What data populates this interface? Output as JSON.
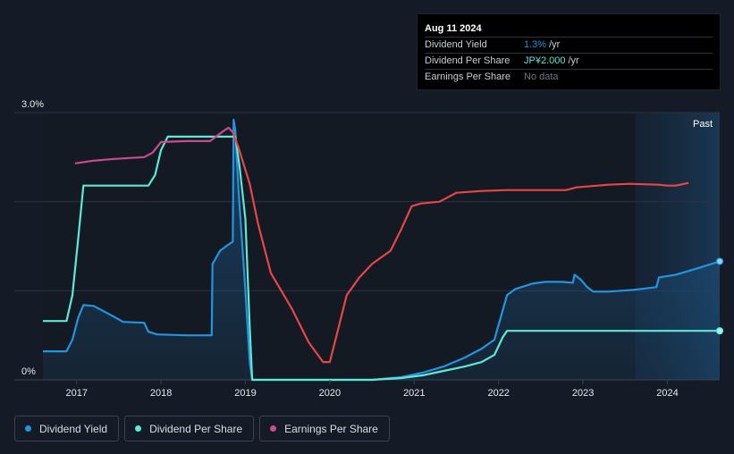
{
  "tooltip": {
    "date": "Aug 11 2024",
    "rows": [
      {
        "label": "Dividend Yield",
        "value": "1.3%",
        "unit": "/yr"
      },
      {
        "label": "Dividend Per Share",
        "value": "JP¥2.000",
        "unit": "/yr"
      },
      {
        "label": "Earnings Per Share",
        "value": "No data",
        "unit": ""
      }
    ]
  },
  "legend": [
    {
      "label": "Dividend Yield",
      "color": "#2394df"
    },
    {
      "label": "Dividend Per Share",
      "color": "#5ee8d5"
    },
    {
      "label": "Earnings Per Share",
      "color": "#cc4a91"
    }
  ],
  "colors": {
    "yield": "#2394df",
    "dps": "#5ee8d5",
    "eps_up": "#cc4a91",
    "eps_down": "#e84545",
    "background": "#151b26",
    "past_band": "#16324a"
  },
  "chart_data": {
    "type": "line",
    "title": "",
    "xlabel": "",
    "ylabel": "",
    "x_range": [
      2016.6,
      2024.62
    ],
    "ylim": [
      0,
      3.0
    ],
    "y_tick_labels": [
      {
        "value": 3.0,
        "label": "3.0%"
      },
      {
        "value": 0,
        "label": "0%"
      }
    ],
    "gridlines": [
      1.0,
      2.0,
      3.0
    ],
    "x_ticks": [
      2017,
      2018,
      2019,
      2020,
      2021,
      2022,
      2023,
      2024
    ],
    "x_tick_labels": [
      "2017",
      "2018",
      "2019",
      "2020",
      "2021",
      "2022",
      "2023",
      "2024"
    ],
    "past_band": {
      "start": 2023.62,
      "end": 2024.62,
      "label": "Past"
    },
    "series": [
      {
        "name": "Dividend Yield",
        "key": "yield",
        "area": true,
        "end_marker": true,
        "points": [
          [
            2016.6,
            0.32
          ],
          [
            2016.88,
            0.32
          ],
          [
            2016.95,
            0.45
          ],
          [
            2017.02,
            0.7
          ],
          [
            2017.08,
            0.84
          ],
          [
            2017.2,
            0.83
          ],
          [
            2017.4,
            0.73
          ],
          [
            2017.55,
            0.65
          ],
          [
            2017.8,
            0.64
          ],
          [
            2017.85,
            0.54
          ],
          [
            2017.95,
            0.51
          ],
          [
            2018.3,
            0.5
          ],
          [
            2018.6,
            0.5
          ],
          [
            2018.61,
            1.3
          ],
          [
            2018.7,
            1.45
          ],
          [
            2018.8,
            1.52
          ],
          [
            2018.85,
            1.55
          ],
          [
            2018.86,
            2.92
          ],
          [
            2018.88,
            2.8
          ],
          [
            2018.92,
            2.1
          ],
          [
            2019.0,
            1.0
          ],
          [
            2019.05,
            0.2
          ],
          [
            2019.08,
            0.0
          ],
          [
            2020.5,
            0.0
          ],
          [
            2020.85,
            0.03
          ],
          [
            2021.1,
            0.08
          ],
          [
            2021.35,
            0.15
          ],
          [
            2021.6,
            0.25
          ],
          [
            2021.8,
            0.35
          ],
          [
            2021.95,
            0.45
          ],
          [
            2022.1,
            0.95
          ],
          [
            2022.2,
            1.02
          ],
          [
            2022.4,
            1.08
          ],
          [
            2022.55,
            1.1
          ],
          [
            2022.75,
            1.1
          ],
          [
            2022.88,
            1.09
          ],
          [
            2022.9,
            1.18
          ],
          [
            2022.98,
            1.12
          ],
          [
            2023.05,
            1.04
          ],
          [
            2023.12,
            0.99
          ],
          [
            2023.3,
            0.99
          ],
          [
            2023.6,
            1.01
          ],
          [
            2023.87,
            1.04
          ],
          [
            2023.9,
            1.15
          ],
          [
            2024.1,
            1.18
          ],
          [
            2024.35,
            1.25
          ],
          [
            2024.62,
            1.33
          ]
        ]
      },
      {
        "name": "Dividend Per Share",
        "key": "dps",
        "area": false,
        "end_marker": true,
        "points": [
          [
            2016.6,
            0.66
          ],
          [
            2016.88,
            0.66
          ],
          [
            2016.95,
            0.95
          ],
          [
            2017.02,
            1.6
          ],
          [
            2017.08,
            2.18
          ],
          [
            2017.85,
            2.18
          ],
          [
            2017.93,
            2.3
          ],
          [
            2018.0,
            2.58
          ],
          [
            2018.08,
            2.73
          ],
          [
            2018.55,
            2.73
          ],
          [
            2018.88,
            2.73
          ],
          [
            2018.93,
            2.4
          ],
          [
            2019.0,
            1.8
          ],
          [
            2019.05,
            0.6
          ],
          [
            2019.08,
            0.0
          ],
          [
            2020.5,
            0.0
          ],
          [
            2020.85,
            0.02
          ],
          [
            2021.1,
            0.05
          ],
          [
            2021.35,
            0.1
          ],
          [
            2021.6,
            0.15
          ],
          [
            2021.8,
            0.2
          ],
          [
            2021.95,
            0.28
          ],
          [
            2022.05,
            0.48
          ],
          [
            2022.1,
            0.55
          ],
          [
            2024.62,
            0.55
          ]
        ]
      },
      {
        "name": "Earnings Per Share",
        "key": "eps",
        "area": false,
        "end_marker": false,
        "points": [
          [
            2016.98,
            2.43
          ],
          [
            2017.2,
            2.46
          ],
          [
            2017.45,
            2.48
          ],
          [
            2017.8,
            2.5
          ],
          [
            2017.9,
            2.55
          ],
          [
            2018.0,
            2.67
          ],
          [
            2018.3,
            2.68
          ],
          [
            2018.58,
            2.68
          ],
          [
            2018.75,
            2.8
          ],
          [
            2018.8,
            2.83
          ],
          [
            2018.85,
            2.78
          ],
          [
            2018.92,
            2.6
          ],
          [
            2019.05,
            2.2
          ],
          [
            2019.15,
            1.75
          ],
          [
            2019.3,
            1.2
          ],
          [
            2019.55,
            0.8
          ],
          [
            2019.75,
            0.42
          ],
          [
            2019.92,
            0.2
          ],
          [
            2020.0,
            0.2
          ],
          [
            2020.08,
            0.5
          ],
          [
            2020.2,
            0.95
          ],
          [
            2020.35,
            1.15
          ],
          [
            2020.5,
            1.3
          ],
          [
            2020.72,
            1.45
          ],
          [
            2020.85,
            1.7
          ],
          [
            2020.97,
            1.95
          ],
          [
            2021.08,
            1.98
          ],
          [
            2021.3,
            2.0
          ],
          [
            2021.5,
            2.1
          ],
          [
            2021.8,
            2.12
          ],
          [
            2022.1,
            2.13
          ],
          [
            2022.8,
            2.13
          ],
          [
            2022.92,
            2.16
          ],
          [
            2023.3,
            2.19
          ],
          [
            2023.55,
            2.2
          ],
          [
            2023.9,
            2.19
          ],
          [
            2024.0,
            2.18
          ],
          [
            2024.1,
            2.18
          ],
          [
            2024.25,
            2.21
          ]
        ],
        "downturn": [
          2018.9,
          2020.0
        ]
      }
    ]
  }
}
